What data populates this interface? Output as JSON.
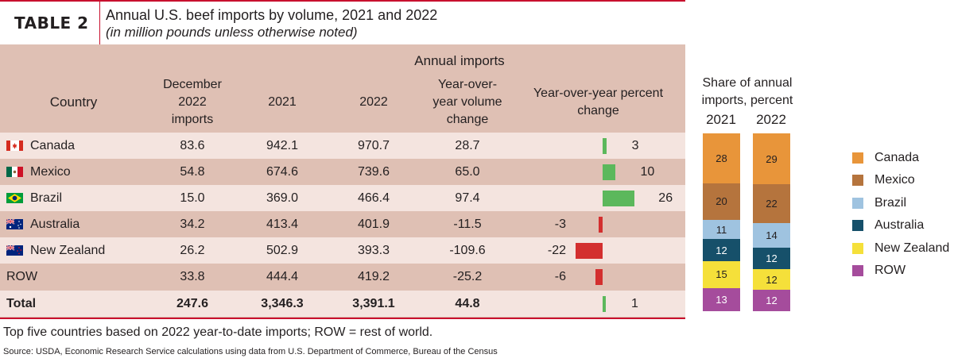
{
  "header": {
    "table_label": "TABLE 2",
    "title": "Annual U.S. beef imports by volume, 2021 and 2022",
    "subtitle": "(in million pounds unless otherwise noted)"
  },
  "columns": {
    "annual_imports": "Annual imports",
    "country": "Country",
    "dec_line1": "December",
    "dec_line2": "2022",
    "dec_line3": "imports",
    "y2021": "2021",
    "y2022": "2022",
    "vol_line1": "Year-over-",
    "vol_line2": "year volume",
    "vol_line3": "change",
    "pct_line1": "Year-over-year percent",
    "pct_line2": "change"
  },
  "rows": [
    {
      "country": "Canada",
      "flag": "canada",
      "dec2022": "83.6",
      "y2021": "942.1",
      "y2022": "970.7",
      "vol_change": "28.7",
      "pct_change": 3,
      "pct_label": "3"
    },
    {
      "country": "Mexico",
      "flag": "mexico",
      "dec2022": "54.8",
      "y2021": "674.6",
      "y2022": "739.6",
      "vol_change": "65.0",
      "pct_change": 10,
      "pct_label": "10"
    },
    {
      "country": "Brazil",
      "flag": "brazil",
      "dec2022": "15.0",
      "y2021": "369.0",
      "y2022": "466.4",
      "vol_change": "97.4",
      "pct_change": 26,
      "pct_label": "26"
    },
    {
      "country": "Australia",
      "flag": "australia",
      "dec2022": "34.2",
      "y2021": "413.4",
      "y2022": "401.9",
      "vol_change": "-11.5",
      "pct_change": -3,
      "pct_label": "-3"
    },
    {
      "country": "New Zealand",
      "flag": "new-zealand",
      "dec2022": "26.2",
      "y2021": "502.9",
      "y2022": "393.3",
      "vol_change": "-109.6",
      "pct_change": -22,
      "pct_label": "-22"
    },
    {
      "country": "ROW",
      "flag": "",
      "dec2022": "33.8",
      "y2021": "444.4",
      "y2022": "419.2",
      "vol_change": "-25.2",
      "pct_change": -6,
      "pct_label": "-6"
    }
  ],
  "total": {
    "country": "Total",
    "dec2022": "247.6",
    "y2021": "3,346.3",
    "y2022": "3,391.1",
    "vol_change": "44.8",
    "pct_change": 1,
    "pct_label": "1"
  },
  "share": {
    "title_line1": "Share of annual",
    "title_line2": "imports, percent",
    "years": [
      "2021",
      "2022"
    ],
    "y2021": [
      {
        "name": "Canada",
        "value": 28,
        "label": "28"
      },
      {
        "name": "Mexico",
        "value": 20,
        "label": "20"
      },
      {
        "name": "Brazil",
        "value": 11,
        "label": "11"
      },
      {
        "name": "Australia",
        "value": 12,
        "label": "12"
      },
      {
        "name": "New Zealand",
        "value": 15,
        "label": "15"
      },
      {
        "name": "ROW",
        "value": 13,
        "label": "13"
      }
    ],
    "y2022": [
      {
        "name": "Canada",
        "value": 29,
        "label": "29"
      },
      {
        "name": "Mexico",
        "value": 22,
        "label": "22"
      },
      {
        "name": "Brazil",
        "value": 14,
        "label": "14"
      },
      {
        "name": "Australia",
        "value": 12,
        "label": "12"
      },
      {
        "name": "New Zealand",
        "value": 12,
        "label": "12"
      },
      {
        "name": "ROW",
        "value": 12,
        "label": "12"
      }
    ]
  },
  "legend": [
    {
      "label": "Canada",
      "color": "#e8953a"
    },
    {
      "label": "Mexico",
      "color": "#b5743d"
    },
    {
      "label": "Brazil",
      "color": "#9fc3e0"
    },
    {
      "label": "Australia",
      "color": "#16506a"
    },
    {
      "label": "New Zealand",
      "color": "#f5e03a"
    },
    {
      "label": "ROW",
      "color": "#a54c9c"
    }
  ],
  "colors": {
    "positive_bar": "#5cb85c",
    "negative_bar": "#d32f2f",
    "accent_rule": "#c8102e"
  },
  "footnote": "Top five countries based on 2022 year-to-date imports; ROW = rest of world.",
  "source": "Source: USDA, Economic Research Service calculations using data from U.S. Department of Commerce, Bureau of the Census"
}
